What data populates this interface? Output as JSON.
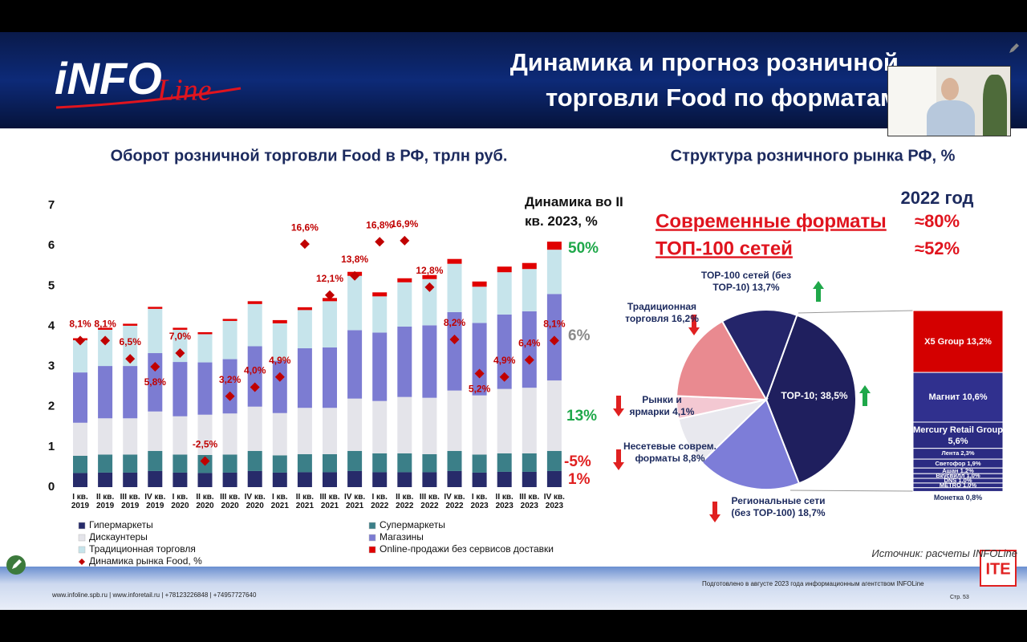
{
  "header": {
    "logo": "iNFO",
    "logo_script": "Line",
    "title": "Динамика и прогноз розничной торговли Food по форматам"
  },
  "chart_data": [
    {
      "type": "bar",
      "stacked": true,
      "title": "Оборот розничной торговли Food в РФ, трлн руб.",
      "categories": [
        "I кв. 2019",
        "II кв. 2019",
        "III кв. 2019",
        "IV кв. 2019",
        "I кв. 2020",
        "II кв. 2020",
        "III кв. 2020",
        "IV кв. 2020",
        "I кв. 2021",
        "II кв. 2021",
        "III кв. 2021",
        "IV кв. 2021",
        "I кв. 2022",
        "II кв. 2022",
        "III кв. 2022",
        "IV кв. 2022",
        "I кв. 2023",
        "II кв. 2023",
        "III кв. 2023",
        "IV кв. 2023"
      ],
      "ylim": [
        0,
        7
      ],
      "yticks": [
        0,
        1,
        2,
        3,
        4,
        5,
        6,
        7
      ],
      "y2lim": [
        -4.8,
        20
      ],
      "series": [
        {
          "name": "Гипермаркеты",
          "color": "#272b6a",
          "values": [
            0.35,
            0.36,
            0.36,
            0.4,
            0.36,
            0.35,
            0.36,
            0.4,
            0.36,
            0.37,
            0.37,
            0.4,
            0.37,
            0.37,
            0.37,
            0.4,
            0.36,
            0.38,
            0.38,
            0.4
          ]
        },
        {
          "name": "Супермаркеты",
          "color": "#3b7f88",
          "values": [
            0.43,
            0.45,
            0.45,
            0.5,
            0.45,
            0.45,
            0.45,
            0.5,
            0.43,
            0.45,
            0.45,
            0.5,
            0.47,
            0.47,
            0.45,
            0.5,
            0.45,
            0.46,
            0.46,
            0.5
          ]
        },
        {
          "name": "Дискаунтеры",
          "color": "#e4e4ea",
          "values": [
            0.82,
            0.9,
            0.9,
            0.98,
            0.95,
            1.0,
            1.02,
            1.1,
            1.05,
            1.15,
            1.15,
            1.3,
            1.3,
            1.4,
            1.4,
            1.5,
            1.47,
            1.6,
            1.63,
            1.75
          ]
        },
        {
          "name": "Магазины",
          "color": "#7c7cd2",
          "values": [
            1.25,
            1.3,
            1.3,
            1.45,
            1.35,
            1.3,
            1.35,
            1.5,
            1.3,
            1.48,
            1.5,
            1.7,
            1.7,
            1.75,
            1.8,
            1.95,
            1.8,
            1.85,
            1.9,
            2.15
          ]
        },
        {
          "name": "Традиционная торговля",
          "color": "#c6e4eb",
          "values": [
            0.8,
            0.9,
            1.0,
            1.1,
            0.8,
            0.7,
            0.95,
            1.05,
            0.93,
            0.95,
            1.15,
            1.35,
            0.9,
            1.1,
            1.15,
            1.2,
            0.9,
            1.05,
            1.05,
            1.1
          ]
        },
        {
          "name": "Online-продажи без сервисов доставки",
          "color": "#e00000",
          "values": [
            0.05,
            0.05,
            0.05,
            0.05,
            0.05,
            0.05,
            0.05,
            0.07,
            0.08,
            0.07,
            0.08,
            0.1,
            0.1,
            0.1,
            0.1,
            0.12,
            0.13,
            0.14,
            0.15,
            0.2
          ]
        },
        {
          "name": "Динамика рынка Food, %",
          "type": "scatter",
          "marker": "diamond",
          "axis": "y2",
          "color": "#c00000",
          "values": [
            8.1,
            8.1,
            6.5,
            5.8,
            7.0,
            -2.5,
            3.2,
            4.0,
            4.9,
            16.6,
            12.1,
            13.8,
            16.8,
            16.9,
            12.8,
            8.2,
            5.2,
            4.9,
            6.4,
            8.1
          ],
          "value_labels": [
            "8,1%",
            "8,1%",
            "6,5%",
            "5,8%",
            "7,0%",
            "-2,5%",
            "3,2%",
            "4,0%",
            "4,9%",
            "16,6%",
            "12,1%",
            "13,8%",
            "16,8%",
            "16,9%",
            "12,8%",
            "8,2%",
            "5,2%",
            "4,9%",
            "6,4%",
            "8,1%"
          ]
        }
      ],
      "annotation_title": "Динамика во II кв. 2023, %",
      "annotations": [
        {
          "text": "50%",
          "color": "#1fa84a"
        },
        {
          "text": "6%",
          "color": "#8a8a8a"
        },
        {
          "text": "13%",
          "color": "#1fa84a"
        },
        {
          "text": "-5%",
          "color": "#e02020"
        },
        {
          "text": "1%",
          "color": "#e02020"
        }
      ]
    },
    {
      "type": "pie",
      "title": "Структура розничного рынка РФ, %",
      "subtitle": "2022 год",
      "highlights": [
        {
          "label": "Современные форматы",
          "value": "≈80%"
        },
        {
          "label": "ТОП-100 сетей",
          "value": "≈52%"
        }
      ],
      "categories": [
        "TOP-10;",
        "Региональные сети (без TOP-100)",
        "Несетевые соврем. форматы",
        "Рынки и ярмарки",
        "Традиционная торговля",
        "TOP-100 сетей (без TOP-10)"
      ],
      "values": [
        38.5,
        18.7,
        8.8,
        4.1,
        16.2,
        13.7
      ],
      "value_labels": [
        "38,5%",
        "18,7%",
        "8,8%",
        "4,1%",
        "16,2%",
        "13,7%"
      ],
      "colors": [
        "#1f1f5e",
        "#7d7dd8",
        "#e8e8ee",
        "#f3c8d2",
        "#e98a90",
        "#24256a"
      ],
      "breakdown": {
        "categories": [
          "X5 Group",
          "Магнит",
          "Mercury Retail Group",
          "Лента",
          "Светофор",
          "Ашан",
          "Вкусвилл",
          "DNS",
          "METRO",
          "Монетка"
        ],
        "values": [
          13.2,
          10.6,
          5.6,
          2.3,
          1.9,
          1.2,
          1.0,
          1.0,
          1.0,
          0.8
        ],
        "value_labels": [
          "13,2%",
          "10,6%",
          "5,6%",
          "2,3%",
          "1,9%",
          "1,2%",
          "1,0%",
          "1,0%",
          "1,0%",
          "0,8%"
        ],
        "colors": [
          "#d40000",
          "#30308e",
          "#2b2b82",
          "#2b2b82",
          "#2b2b82",
          "#2b2b82",
          "#2b2b82",
          "#2b2b82",
          "#2b2b82",
          "#2b2b82"
        ]
      }
    }
  ],
  "source": "Источник: расчеты INFOLine",
  "footer": {
    "contacts": "www.infoline.spb.ru | www.inforetail.ru | +78123226848 | +74957727640",
    "prepared": "Подготовлено в августе 2023 года информационным агентством INFOLine",
    "page": "Стр. 53",
    "logo": "ITE"
  }
}
